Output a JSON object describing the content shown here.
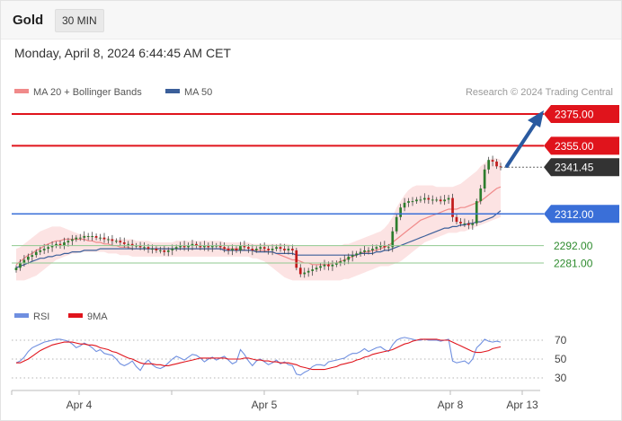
{
  "header": {
    "instrument": "Gold",
    "timeframe": "30 MIN",
    "datetime": "Monday, April 8, 2024 6:44:45 AM CET"
  },
  "legend": {
    "ma20_label": "MA 20 + Bollinger Bands",
    "ma50_label": "MA 50",
    "source": "Research © 2024 Trading Central"
  },
  "colors": {
    "bollinger_fill": "#fbdada",
    "ma20": "#f08a8a",
    "ma50": "#3b5f9a",
    "candle_up": "#2d7d2d",
    "candle_down": "#c21b1b",
    "resistance": "#e0141c",
    "support_blue": "#3a6fd8",
    "support_green": "#8fc98f",
    "current_tag": "#333333",
    "arrow": "#2a5aa0",
    "rsi": "#6f8fe0",
    "rsi_ma": "#e0141c"
  },
  "levels": [
    {
      "value": 2375.0,
      "label": "2375.00",
      "kind": "resistance"
    },
    {
      "value": 2355.0,
      "label": "2355.00",
      "kind": "resistance"
    },
    {
      "value": 2341.45,
      "label": "2341.45",
      "kind": "current"
    },
    {
      "value": 2312.0,
      "label": "2312.00",
      "kind": "pivot"
    },
    {
      "value": 2292.0,
      "label": "2292.00",
      "kind": "support"
    },
    {
      "value": 2281.0,
      "label": "2281.00",
      "kind": "support"
    }
  ],
  "rsi_panel": {
    "rsi_label": "RSI",
    "ma_label": "9MA",
    "ticks": [
      "70",
      "50",
      "30"
    ]
  },
  "x_axis": {
    "labels": [
      "Apr 4",
      "Apr 5",
      "Apr 8",
      "Apr 13"
    ]
  },
  "chart_data": {
    "type": "candlestick",
    "ylim": [
      2260,
      2390
    ],
    "price_close": [
      2278,
      2281,
      2283,
      2285,
      2286,
      2288,
      2289,
      2290,
      2291,
      2292,
      2293,
      2292,
      2294,
      2295,
      2296,
      2297,
      2297,
      2298,
      2298,
      2298,
      2297,
      2297,
      2296,
      2296,
      2295,
      2295,
      2294,
      2293,
      2293,
      2292,
      2292,
      2291,
      2291,
      2290,
      2290,
      2289,
      2289,
      2288,
      2289,
      2290,
      2291,
      2292,
      2291,
      2292,
      2293,
      2292,
      2291,
      2292,
      2291,
      2292,
      2292,
      2291,
      2290,
      2289,
      2290,
      2289,
      2292,
      2291,
      2290,
      2289,
      2290,
      2291,
      2290,
      2289,
      2290,
      2291,
      2290,
      2289,
      2290,
      2289,
      2278,
      2274,
      2275,
      2276,
      2277,
      2278,
      2279,
      2280,
      2279,
      2280,
      2281,
      2282,
      2283,
      2285,
      2286,
      2287,
      2288,
      2289,
      2289,
      2290,
      2291,
      2292,
      2291,
      2291,
      2301,
      2310,
      2316,
      2319,
      2320,
      2320,
      2321,
      2321,
      2322,
      2321,
      2321,
      2321,
      2320,
      2321,
      2322,
      2310,
      2307,
      2306,
      2306,
      2305,
      2306,
      2320,
      2328,
      2340,
      2346,
      2345,
      2342,
      2341.45
    ],
    "ma20": [
      2280,
      2282,
      2284,
      2286,
      2287,
      2289,
      2290,
      2292,
      2293,
      2294,
      2295,
      2295,
      2296,
      2296,
      2296,
      2296,
      2296,
      2296,
      2295,
      2295,
      2294,
      2294,
      2293,
      2293,
      2292,
      2292,
      2291,
      2291,
      2291,
      2290,
      2290,
      2290,
      2290,
      2290,
      2290,
      2290,
      2290,
      2290,
      2290,
      2290,
      2290,
      2290,
      2290,
      2290,
      2290,
      2290,
      2290,
      2290,
      2290,
      2290,
      2290,
      2290,
      2290,
      2290,
      2290,
      2290,
      2290,
      2289,
      2289,
      2289,
      2289,
      2289,
      2289,
      2288,
      2288,
      2287,
      2286,
      2285,
      2284,
      2283,
      2283,
      2282,
      2281,
      2281,
      2280,
      2280,
      2280,
      2280,
      2280,
      2281,
      2281,
      2282,
      2283,
      2284,
      2285,
      2286,
      2287,
      2288,
      2288,
      2289,
      2289,
      2290,
      2291,
      2292,
      2294,
      2296,
      2298,
      2300,
      2302,
      2304,
      2306,
      2308,
      2309,
      2310,
      2311,
      2312,
      2313,
      2314,
      2315,
      2315,
      2315,
      2316,
      2316,
      2317,
      2318,
      2319,
      2320,
      2322,
      2324,
      2326,
      2328,
      2329
    ],
    "ma50": [
      2278,
      2279,
      2280,
      2281,
      2282,
      2283,
      2284,
      2284,
      2285,
      2285,
      2286,
      2286,
      2287,
      2287,
      2288,
      2288,
      2288,
      2289,
      2289,
      2289,
      2289,
      2290,
      2290,
      2290,
      2290,
      2290,
      2290,
      2290,
      2290,
      2290,
      2290,
      2290,
      2290,
      2290,
      2290,
      2290,
      2290,
      2290,
      2290,
      2290,
      2290,
      2290,
      2290,
      2290,
      2290,
      2290,
      2290,
      2290,
      2290,
      2290,
      2290,
      2290,
      2289,
      2289,
      2289,
      2289,
      2289,
      2289,
      2289,
      2289,
      2288,
      2288,
      2288,
      2288,
      2288,
      2287,
      2287,
      2287,
      2287,
      2287,
      2286,
      2286,
      2286,
      2286,
      2286,
      2286,
      2286,
      2286,
      2286,
      2286,
      2286,
      2286,
      2286,
      2286,
      2286,
      2286,
      2287,
      2287,
      2287,
      2287,
      2288,
      2288,
      2289,
      2289,
      2290,
      2291,
      2292,
      2293,
      2294,
      2295,
      2296,
      2297,
      2298,
      2299,
      2300,
      2301,
      2302,
      2303,
      2303,
      2304,
      2304,
      2305,
      2305,
      2306,
      2306,
      2307,
      2307,
      2308,
      2309,
      2310,
      2312,
      2314
    ],
    "bb_upper": [
      2290,
      2291,
      2293,
      2295,
      2297,
      2299,
      2301,
      2302,
      2303,
      2304,
      2304,
      2304,
      2303,
      2302,
      2301,
      2300,
      2299,
      2299,
      2298,
      2298,
      2297,
      2297,
      2297,
      2297,
      2296,
      2296,
      2296,
      2296,
      2296,
      2296,
      2295,
      2295,
      2295,
      2295,
      2294,
      2294,
      2294,
      2294,
      2294,
      2294,
      2295,
      2295,
      2295,
      2295,
      2295,
      2295,
      2295,
      2295,
      2295,
      2295,
      2295,
      2295,
      2294,
      2294,
      2294,
      2294,
      2294,
      2294,
      2294,
      2293,
      2293,
      2293,
      2293,
      2293,
      2293,
      2293,
      2293,
      2293,
      2293,
      2292,
      2292,
      2292,
      2292,
      2292,
      2292,
      2292,
      2292,
      2292,
      2292,
      2292,
      2292,
      2292,
      2293,
      2293,
      2294,
      2295,
      2296,
      2297,
      2298,
      2299,
      2300,
      2301,
      2303,
      2306,
      2310,
      2316,
      2320,
      2324,
      2327,
      2329,
      2330,
      2330,
      2330,
      2330,
      2330,
      2329,
      2329,
      2329,
      2329,
      2329,
      2330,
      2331,
      2333,
      2335,
      2337,
      2339,
      2342,
      2344,
      2346,
      2347,
      2347,
      2346
    ],
    "bb_lower": [
      2270,
      2270,
      2270,
      2271,
      2272,
      2273,
      2275,
      2277,
      2279,
      2281,
      2283,
      2284,
      2285,
      2286,
      2287,
      2287,
      2288,
      2288,
      2288,
      2288,
      2288,
      2288,
      2288,
      2287,
      2287,
      2287,
      2286,
      2286,
      2286,
      2285,
      2285,
      2285,
      2285,
      2285,
      2285,
      2285,
      2285,
      2285,
      2285,
      2285,
      2285,
      2285,
      2285,
      2285,
      2285,
      2285,
      2285,
      2285,
      2285,
      2285,
      2285,
      2285,
      2285,
      2285,
      2285,
      2285,
      2285,
      2285,
      2285,
      2284,
      2284,
      2283,
      2282,
      2280,
      2278,
      2276,
      2274,
      2272,
      2271,
      2270,
      2270,
      2270,
      2270,
      2270,
      2270,
      2270,
      2270,
      2270,
      2270,
      2270,
      2270,
      2270,
      2271,
      2271,
      2272,
      2273,
      2274,
      2275,
      2276,
      2277,
      2278,
      2279,
      2279,
      2279,
      2280,
      2281,
      2282,
      2284,
      2286,
      2288,
      2290,
      2292,
      2294,
      2295,
      2296,
      2297,
      2298,
      2299,
      2300,
      2300,
      2300,
      2301,
      2301,
      2302,
      2303,
      2304,
      2305,
      2306,
      2307,
      2308,
      2309,
      2310
    ],
    "rsi": [
      46,
      48,
      52,
      58,
      62,
      64,
      66,
      68,
      69,
      70,
      71,
      71,
      70,
      69,
      66,
      62,
      64,
      67,
      65,
      62,
      58,
      60,
      56,
      55,
      54,
      50,
      45,
      43,
      45,
      48,
      42,
      38,
      45,
      49,
      44,
      41,
      40,
      42,
      46,
      50,
      53,
      51,
      49,
      52,
      55,
      54,
      51,
      47,
      50,
      52,
      49,
      51,
      53,
      49,
      45,
      47,
      60,
      55,
      48,
      43,
      48,
      50,
      47,
      44,
      46,
      49,
      45,
      47,
      44,
      43,
      34,
      33,
      36,
      38,
      42,
      44,
      44,
      43,
      47,
      48,
      49,
      50,
      51,
      54,
      56,
      56,
      58,
      61,
      58,
      60,
      62,
      63,
      60,
      58,
      65,
      70,
      72,
      73,
      72,
      71,
      70,
      70,
      71,
      70,
      70,
      70,
      69,
      70,
      71,
      48,
      46,
      47,
      48,
      45,
      50,
      62,
      66,
      71,
      69,
      68,
      69,
      68
    ],
    "rsi_ma": [
      46,
      46,
      48,
      50,
      53,
      56,
      59,
      61,
      63,
      65,
      66,
      67,
      68,
      68,
      68,
      67,
      66,
      66,
      65,
      65,
      64,
      62,
      61,
      60,
      58,
      57,
      55,
      53,
      51,
      50,
      48,
      46,
      45,
      45,
      45,
      44,
      44,
      43,
      43,
      44,
      45,
      46,
      47,
      48,
      49,
      50,
      51,
      51,
      51,
      51,
      51,
      51,
      51,
      50,
      50,
      50,
      50,
      51,
      51,
      50,
      49,
      49,
      48,
      48,
      47,
      47,
      46,
      46,
      46,
      45,
      44,
      42,
      41,
      40,
      39,
      39,
      39,
      39,
      40,
      41,
      42,
      44,
      45,
      46,
      47,
      49,
      50,
      52,
      53,
      55,
      56,
      57,
      58,
      59,
      60,
      62,
      64,
      66,
      67,
      69,
      70,
      71,
      71,
      71,
      71,
      71,
      70,
      70,
      70,
      68,
      66,
      64,
      62,
      60,
      58,
      57,
      57,
      58,
      59,
      61,
      62,
      63
    ]
  }
}
